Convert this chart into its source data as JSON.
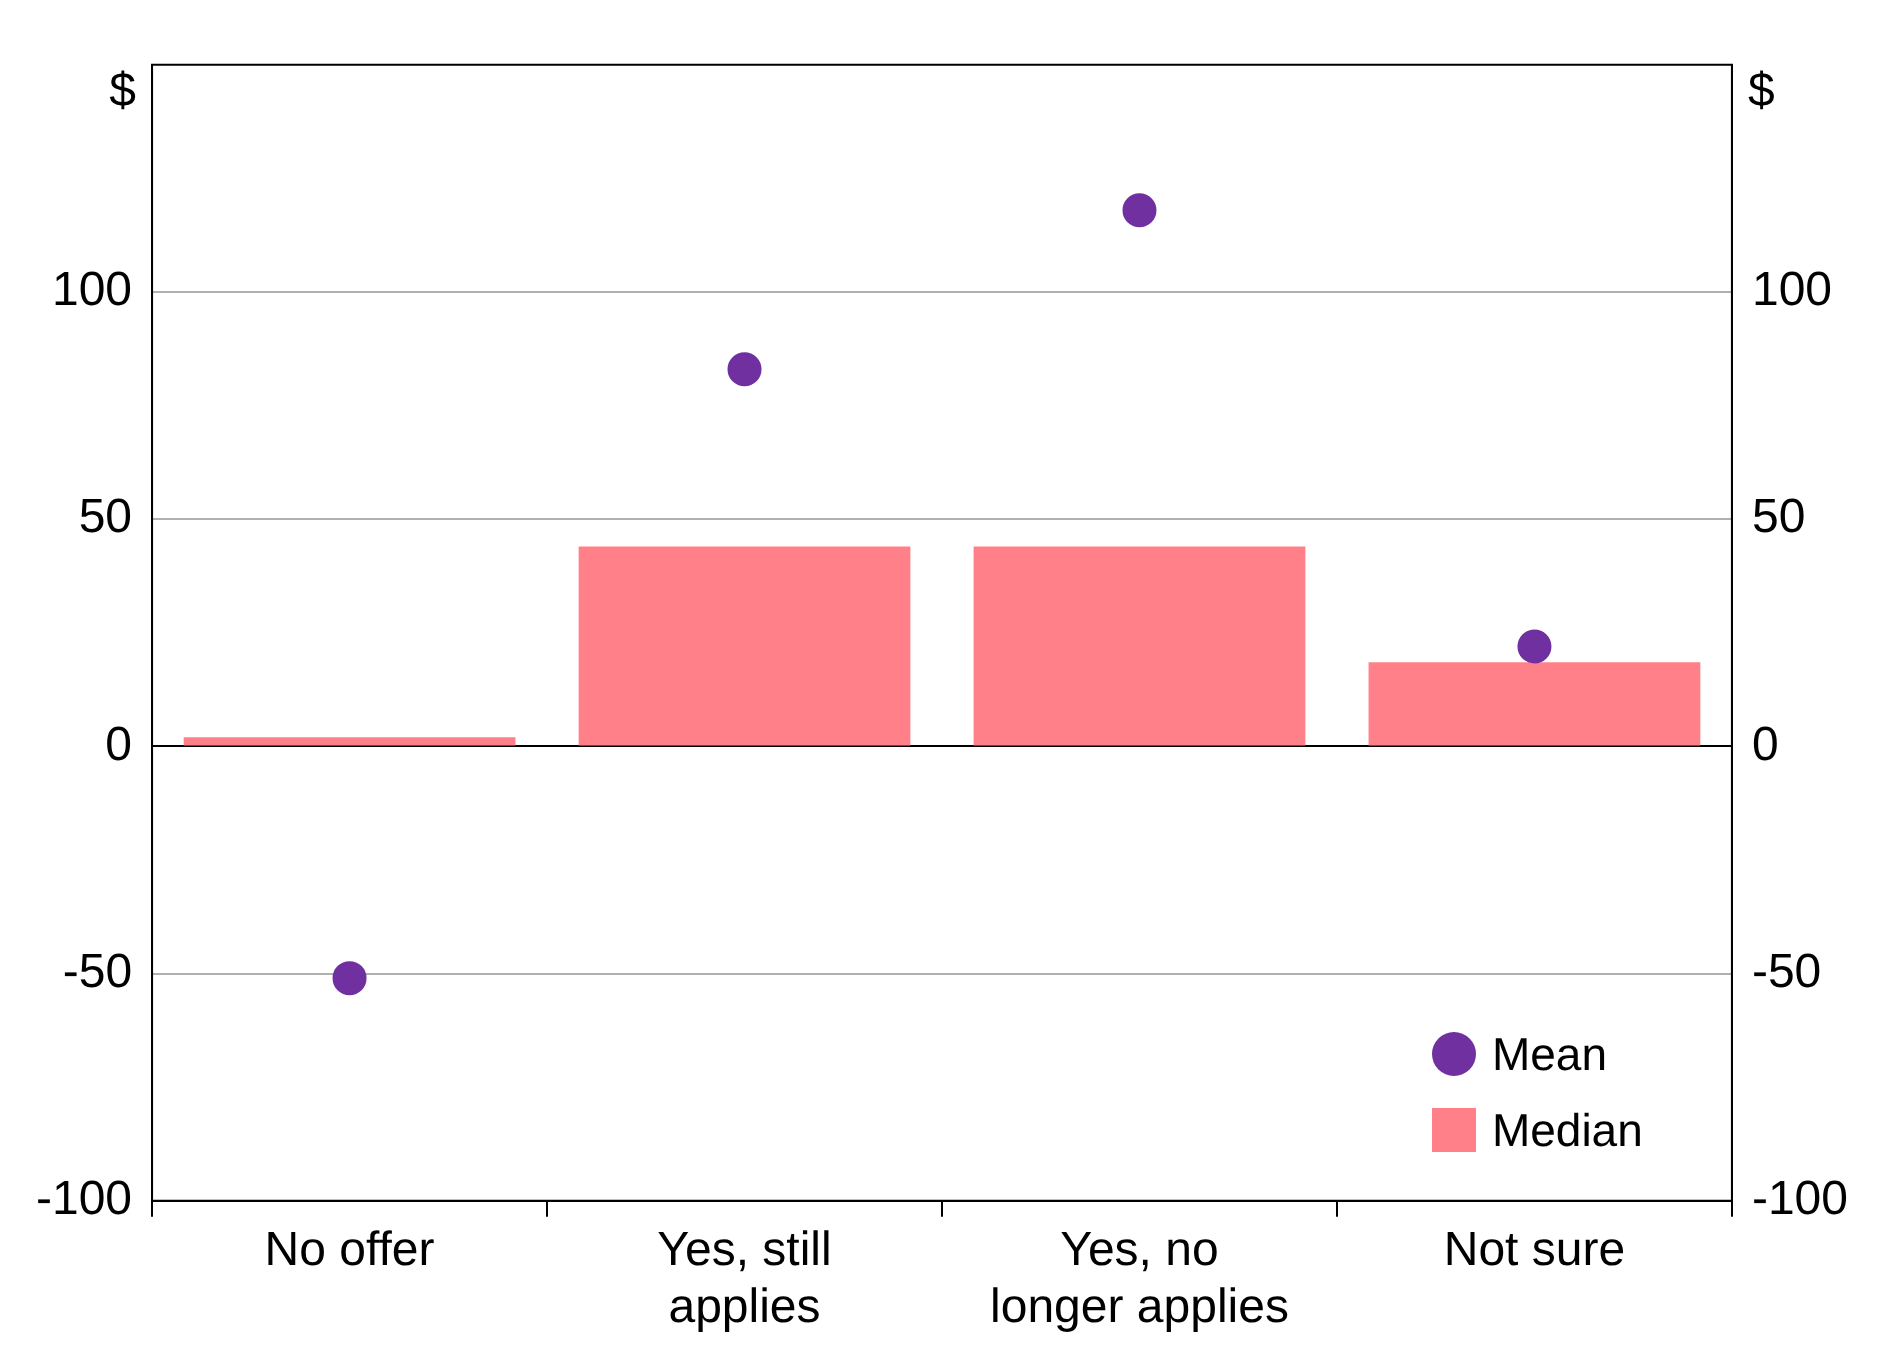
{
  "chart_data": {
    "type": "bar",
    "ylabel": "$",
    "y2label": "$",
    "categories": [
      "No offer",
      "Yes, still applies",
      "Yes, no longer applies",
      "Not sure"
    ],
    "series": [
      {
        "name": "Mean",
        "type": "scatter",
        "color": "#7030a0",
        "x": [
          "No offer",
          "Yes, still applies",
          "Yes, no longer applies",
          "Not sure"
        ],
        "values": [
          -51,
          83,
          118,
          22
        ]
      },
      {
        "name": "Median",
        "color": "#ff8088",
        "values": [
          2,
          44,
          44,
          18.5
        ]
      }
    ],
    "ylim": [
      -100,
      150
    ],
    "yticks": [
      -100,
      -50,
      0,
      50,
      100
    ],
    "y2lim": [
      -100,
      150
    ],
    "y2ticks": [
      -100,
      -50,
      0,
      50,
      100
    ],
    "grid": "y",
    "legend": "bottom right",
    "marker": "circle"
  }
}
